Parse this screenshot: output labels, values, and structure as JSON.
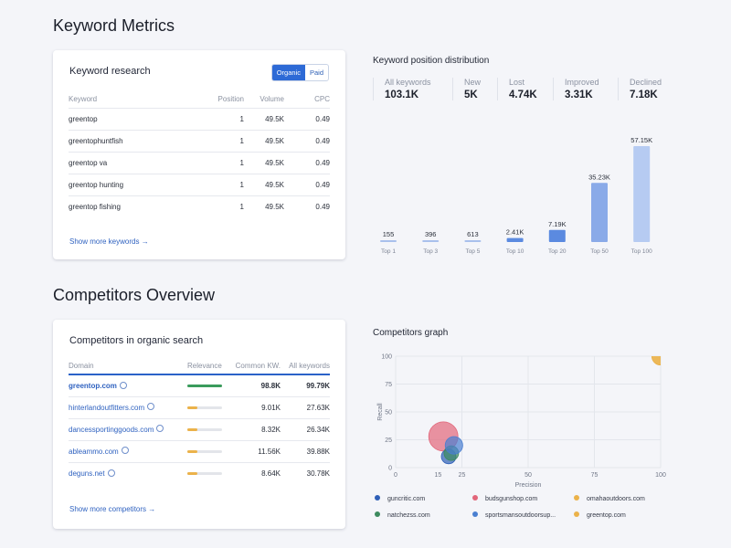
{
  "keyword_metrics": {
    "title": "Keyword Metrics",
    "research": {
      "title": "Keyword research",
      "toggle": [
        "Organic",
        "Paid"
      ],
      "columns": [
        "Keyword",
        "Position",
        "Volume",
        "CPC"
      ],
      "rows": [
        [
          "greentop",
          "1",
          "49.5K",
          "0.49"
        ],
        [
          "greentophuntfish",
          "1",
          "49.5K",
          "0.49"
        ],
        [
          "greentop va",
          "1",
          "49.5K",
          "0.49"
        ],
        [
          "greentop hunting",
          "1",
          "49.5K",
          "0.49"
        ],
        [
          "greentop fishing",
          "1",
          "49.5K",
          "0.49"
        ]
      ],
      "show_more": "Show more keywords →"
    },
    "distribution": {
      "title": "Keyword position distribution",
      "stats": [
        {
          "label": "All keywords",
          "value": "103.1K"
        },
        {
          "label": "New",
          "value": "5K"
        },
        {
          "label": "Lost",
          "value": "4.74K"
        },
        {
          "label": "Improved",
          "value": "3.31K"
        },
        {
          "label": "Declined",
          "value": "7.18K"
        }
      ]
    }
  },
  "chart_data": [
    {
      "type": "bar",
      "title": "Keyword position distribution",
      "categories": [
        "Top 1",
        "Top 3",
        "Top 5",
        "Top 10",
        "Top 20",
        "Top 50",
        "Top 100"
      ],
      "values": [
        155,
        396,
        613,
        2410,
        7190,
        35230,
        57150
      ],
      "value_labels": [
        "155",
        "396",
        "613",
        "2.41K",
        "7.19K",
        "35.23K",
        "57.15K"
      ],
      "colors": [
        "#a9c0ec",
        "#a9c0ec",
        "#a9c0ec",
        "#5b8ae0",
        "#5b8ae0",
        "#8aaae8",
        "#b6cbf2"
      ],
      "ylim": [
        0,
        57150
      ]
    },
    {
      "type": "scatter",
      "title": "Competitors graph",
      "xlabel": "Precision",
      "ylabel": "Recall",
      "xlim": [
        0,
        100
      ],
      "ylim": [
        0,
        100
      ],
      "xticks": [
        0,
        15,
        25,
        50,
        75,
        100
      ],
      "yticks": [
        0,
        25,
        50,
        75,
        100
      ],
      "series": [
        {
          "name": "guncritic.com",
          "color": "#2e5fb7",
          "x": 20,
          "y": 10,
          "size": 5
        },
        {
          "name": "budsgunshop.com",
          "color": "#e2667a",
          "x": 18,
          "y": 28,
          "size": 10
        },
        {
          "name": "omahaoutdoors.com",
          "color": "#ebb24a",
          "x": 100,
          "y": 100,
          "size": 6
        },
        {
          "name": "natchezss.com",
          "color": "#3d8a5f",
          "x": 21,
          "y": 13,
          "size": 5
        },
        {
          "name": "sportsmansoutdoorsup...",
          "color": "#4a7fd1",
          "x": 22,
          "y": 20,
          "size": 6
        },
        {
          "name": "greentop.com",
          "color": "#ebb24a",
          "x": 100,
          "y": 100,
          "size": 6
        }
      ]
    }
  ],
  "competitors": {
    "title": "Competitors Overview",
    "organic": {
      "title": "Competitors in organic search",
      "columns": [
        "Domain",
        "Relevance",
        "Common KW.",
        "All keywords"
      ],
      "rows": [
        {
          "domain": "greentop.com",
          "relevance": 1.0,
          "rel_color": "#3a9b5c",
          "common": "98.8K",
          "all": "99.79K",
          "bold": true
        },
        {
          "domain": "hinterlandoutfitters.com",
          "relevance": 0.3,
          "rel_color": "#ebb24a",
          "common": "9.01K",
          "all": "27.63K",
          "bold": false
        },
        {
          "domain": "dancessportinggoods.com",
          "relevance": 0.3,
          "rel_color": "#ebb24a",
          "common": "8.32K",
          "all": "26.34K",
          "bold": false
        },
        {
          "domain": "ableammo.com",
          "relevance": 0.3,
          "rel_color": "#ebb24a",
          "common": "11.56K",
          "all": "39.88K",
          "bold": false
        },
        {
          "domain": "deguns.net",
          "relevance": 0.3,
          "rel_color": "#ebb24a",
          "common": "8.64K",
          "all": "30.78K",
          "bold": false
        }
      ],
      "show_more": "Show more competitors →"
    },
    "graph_title": "Competitors graph"
  }
}
